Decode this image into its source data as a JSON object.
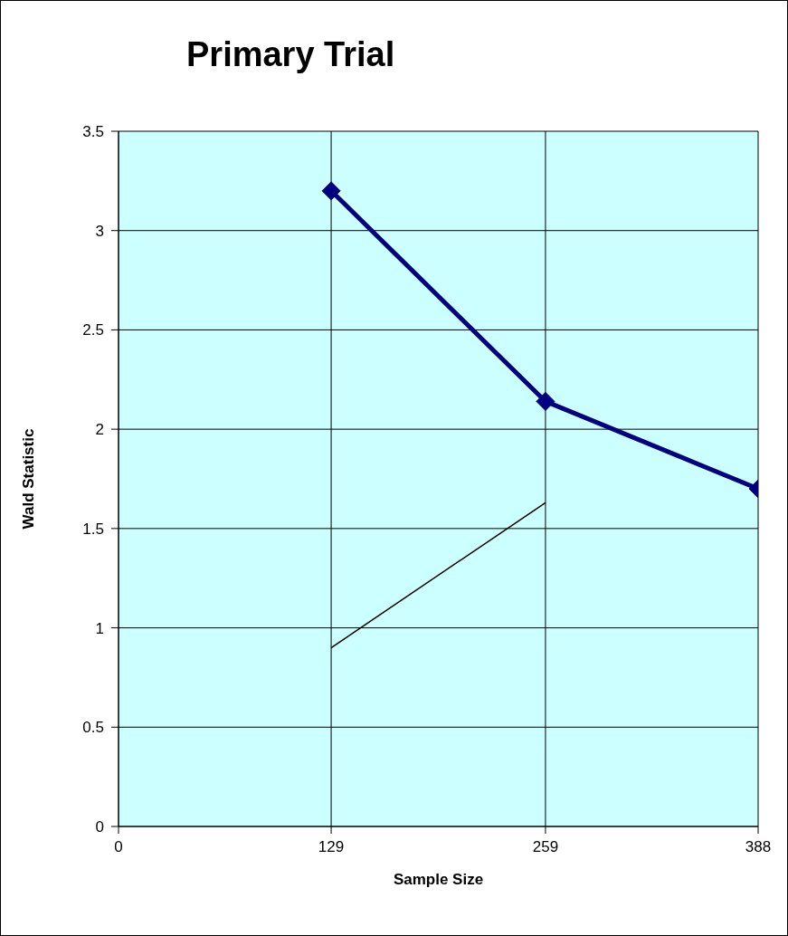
{
  "chart_data": {
    "type": "line",
    "title": "Primary Trial",
    "xlabel": "Sample Size",
    "ylabel": "Wald Statistic",
    "xlim": [
      0,
      388
    ],
    "xticks": [
      0,
      129,
      259,
      388
    ],
    "ylim": [
      0,
      3.5
    ],
    "yticks": [
      0,
      0.5,
      1,
      1.5,
      2,
      2.5,
      3,
      3.5
    ],
    "grid": true,
    "legend": false,
    "series": [
      {
        "color": "#000080",
        "x": [
          129,
          259,
          388
        ],
        "values": [
          3.2,
          2.14,
          1.7
        ],
        "marker": "diamond"
      },
      {
        "color": "#000000",
        "x": [
          129,
          259
        ],
        "values": [
          0.9,
          1.63
        ],
        "marker": "none"
      }
    ]
  }
}
